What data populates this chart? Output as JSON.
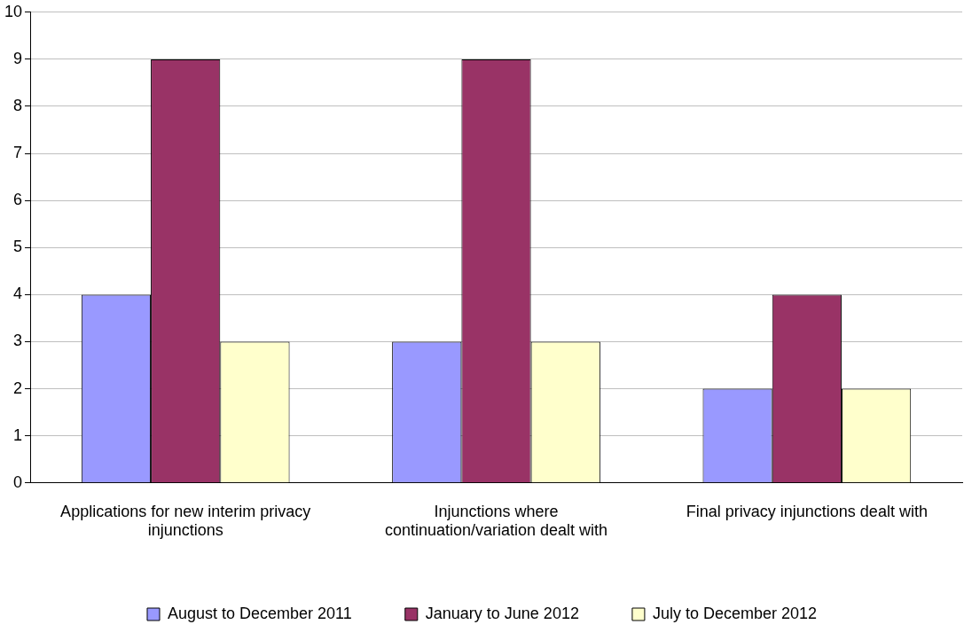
{
  "chart_data": {
    "type": "bar",
    "categories": [
      "Applications for new interim privacy injunctions",
      "Injunctions where continuation/variation dealt with",
      "Final privacy injunctions dealt with"
    ],
    "series": [
      {
        "name": "August to December 2011",
        "color": "#9999ff",
        "values": [
          4,
          3,
          2
        ]
      },
      {
        "name": "January to June 2012",
        "color": "#993366",
        "values": [
          9,
          9,
          4
        ]
      },
      {
        "name": "July to December 2012",
        "color": "#ffffcc",
        "values": [
          3,
          3,
          2
        ]
      }
    ],
    "ylim": [
      0,
      10
    ],
    "yticks": [
      0,
      1,
      2,
      3,
      4,
      5,
      6,
      7,
      8,
      9,
      10
    ],
    "grid": "y",
    "legend": "bottom"
  }
}
